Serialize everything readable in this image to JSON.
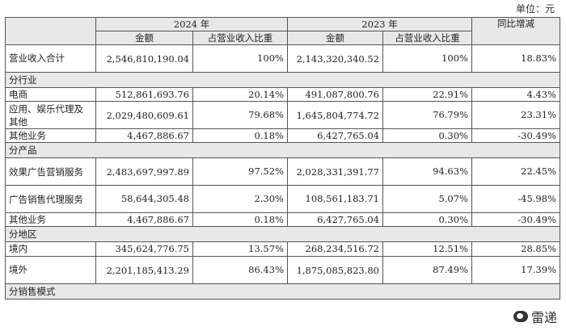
{
  "unit_label": "单位：元",
  "header": {
    "year_2024": "2024 年",
    "year_2023": "2023 年",
    "yoy": "同比增减",
    "amount": "金额",
    "share": "占营业收入比重"
  },
  "total": {
    "label": "营业收入合计",
    "amt2024": "2,546,810,190.04",
    "share2024": "100%",
    "amt2023": "2,143,320,340.52",
    "share2023": "100%",
    "yoy": "18.83%"
  },
  "sections": {
    "industry": {
      "title": "分行业",
      "rows": [
        {
          "label": "电商",
          "amt2024": "512,861,693.76",
          "share2024": "20.14%",
          "amt2023": "491,087,800.76",
          "share2023": "22.91%",
          "yoy": "4.43%"
        },
        {
          "label": "应用、娱乐代理及其他",
          "amt2024": "2,029,480,609.61",
          "share2024": "79.68%",
          "amt2023": "1,645,804,774.72",
          "share2023": "76.79%",
          "yoy": "23.31%"
        },
        {
          "label": "其他业务",
          "amt2024": "4,467,886.67",
          "share2024": "0.18%",
          "amt2023": "6,427,765.04",
          "share2023": "0.30%",
          "yoy": "-30.49%"
        }
      ]
    },
    "product": {
      "title": "分产品",
      "rows": [
        {
          "label": "效果广告营销服务",
          "amt2024": "2,483,697,997.89",
          "share2024": "97.52%",
          "amt2023": "2,028,331,391.77",
          "share2023": "94.63%",
          "yoy": "22.45%"
        },
        {
          "label": "广告销售代理服务",
          "amt2024": "58,644,305.48",
          "share2024": "2.30%",
          "amt2023": "108,561,183.71",
          "share2023": "5.07%",
          "yoy": "-45.98%"
        },
        {
          "label": "其他业务",
          "amt2024": "4,467,886.67",
          "share2024": "0.18%",
          "amt2023": "6,427,765.04",
          "share2023": "0.30%",
          "yoy": "-30.49%"
        }
      ]
    },
    "region": {
      "title": "分地区",
      "rows": [
        {
          "label": "境内",
          "amt2024": "345,624,776.75",
          "share2024": "13.57%",
          "amt2023": "268,234,516.72",
          "share2023": "12.51%",
          "yoy": "28.85%"
        },
        {
          "label": "境外",
          "amt2024": "2,201,185,413.29",
          "share2024": "86.43%",
          "amt2023": "1,875,085,823.80",
          "share2023": "87.49%",
          "yoy": "17.39%"
        }
      ]
    },
    "sales_model": {
      "title": "分销售模式"
    }
  },
  "watermark": "雷递"
}
